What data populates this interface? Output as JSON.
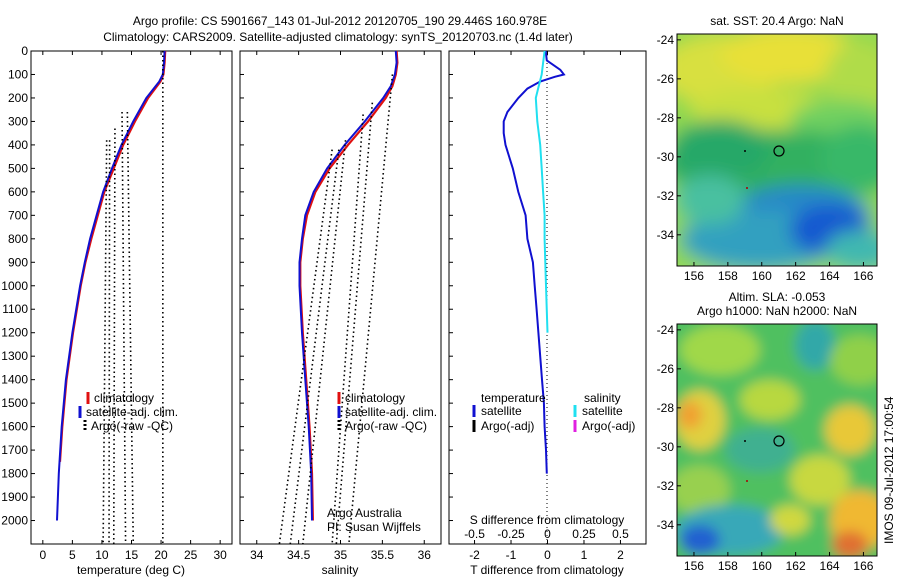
{
  "header": {
    "line1": "Argo profile: CS 5901667_143 01-Jul-2012 20120705_190 29.446S 160.978E",
    "line2": "Climatology: CARS2009. Satellite-adjusted climatology: synTS_20120703.nc (1.4d later)"
  },
  "colors": {
    "climatology": "#e01010",
    "satellite": "#1010d0",
    "argo": "#000000",
    "sal_sat": "#20e0f0",
    "sal_argo": "#e020e0"
  },
  "chart_data": [
    {
      "type": "line",
      "title": "",
      "xlabel": "temperature (deg C)",
      "ylabel": "",
      "xlim": [
        -2,
        32
      ],
      "ylim": [
        0,
        2100
      ],
      "y_reversed": true,
      "xticks": [
        0,
        5,
        10,
        15,
        20,
        25,
        30
      ],
      "yticks": [
        0,
        100,
        200,
        300,
        400,
        500,
        600,
        700,
        800,
        900,
        1000,
        1100,
        1200,
        1300,
        1400,
        1500,
        1600,
        1700,
        1800,
        1900,
        2000
      ],
      "legend": {
        "position": "lower-right",
        "entries": [
          "climatology",
          "satellite-adj. clim.",
          "Argo(-raw -QC)"
        ]
      },
      "series": [
        {
          "name": "climatology",
          "style": "solid",
          "color_key": "climatology",
          "depth": [
            0,
            50,
            100,
            130,
            200,
            300,
            400,
            500,
            600,
            700,
            800,
            900,
            1000,
            1200,
            1400,
            1600,
            1750
          ],
          "values": [
            20.7,
            20.6,
            20.4,
            19.9,
            17.8,
            15.6,
            13.6,
            12.0,
            10.4,
            9.3,
            8.2,
            7.2,
            6.4,
            5.1,
            4.0,
            3.3,
            2.9
          ]
        },
        {
          "name": "satellite-adj. clim.",
          "style": "solid",
          "color_key": "satellite",
          "depth": [
            0,
            50,
            100,
            130,
            200,
            300,
            400,
            500,
            600,
            700,
            800,
            900,
            1000,
            1200,
            1400,
            1600,
            1800,
            2000
          ],
          "values": [
            20.6,
            20.5,
            20.3,
            19.7,
            17.5,
            15.3,
            13.3,
            11.7,
            10.2,
            9.1,
            8.0,
            7.1,
            6.3,
            5.0,
            3.9,
            3.2,
            2.7,
            2.4
          ]
        },
        {
          "name": "Argo(-raw -QC)",
          "style": "dotted",
          "color_key": "argo",
          "columns": [
            {
              "depth": [
                380,
                2100
              ],
              "values": [
                10.8,
                10.2
              ]
            },
            {
              "depth": [
                380,
                2100
              ],
              "values": [
                11.3,
                11.2
              ]
            },
            {
              "depth": [
                330,
                2100
              ],
              "values": [
                12.2,
                12.0
              ]
            },
            {
              "depth": [
                260,
                2100
              ],
              "values": [
                13.4,
                14.0
              ]
            },
            {
              "depth": [
                260,
                2100
              ],
              "values": [
                14.3,
                15.3
              ]
            },
            {
              "depth": [
                0,
                2100
              ],
              "values": [
                20.3,
                20.3
              ]
            }
          ]
        }
      ]
    },
    {
      "type": "line",
      "title": "",
      "xlabel": "salinity",
      "xlim": [
        33.8,
        36.2
      ],
      "ylim": [
        0,
        2100
      ],
      "y_reversed": true,
      "xticks": [
        34,
        34.5,
        35,
        35.5,
        36
      ],
      "xticklabels": [
        "34",
        "34.5",
        "35",
        "35.5",
        "36"
      ],
      "legend": {
        "position": "lower-right",
        "entries": [
          "climatology",
          "satellite-adj. clim.",
          "Argo(-raw -QC)"
        ]
      },
      "annotations": [
        "Argo Australia",
        "PI: Susan Wijffels"
      ],
      "series": [
        {
          "name": "climatology",
          "style": "solid",
          "color_key": "climatology",
          "depth": [
            0,
            50,
            100,
            150,
            200,
            300,
            400,
            500,
            600,
            700,
            800,
            900,
            1000,
            1200,
            1400,
            1600,
            1800,
            2000
          ],
          "values": [
            35.67,
            35.68,
            35.66,
            35.62,
            35.54,
            35.33,
            35.09,
            34.87,
            34.7,
            34.6,
            34.55,
            34.52,
            34.52,
            34.55,
            34.59,
            34.63,
            34.66,
            34.67
          ]
        },
        {
          "name": "satellite-adj. clim.",
          "style": "solid",
          "color_key": "satellite",
          "depth": [
            0,
            50,
            100,
            150,
            200,
            300,
            400,
            500,
            600,
            700,
            800,
            900,
            1000,
            1200,
            1400,
            1600,
            1800,
            2000
          ],
          "values": [
            35.66,
            35.67,
            35.65,
            35.6,
            35.51,
            35.29,
            35.05,
            34.84,
            34.68,
            34.58,
            34.54,
            34.51,
            34.51,
            34.54,
            34.58,
            34.62,
            34.65,
            34.66
          ]
        },
        {
          "name": "Argo(-raw -QC)",
          "style": "dotted",
          "color_key": "argo",
          "columns": [
            {
              "depth": [
                420,
                2100
              ],
              "values": [
                34.9,
                34.27
              ]
            },
            {
              "depth": [
                420,
                2100
              ],
              "values": [
                34.98,
                34.4
              ]
            },
            {
              "depth": [
                380,
                2100
              ],
              "values": [
                35.06,
                34.55
              ]
            },
            {
              "depth": [
                270,
                2100
              ],
              "values": [
                35.27,
                34.9
              ]
            },
            {
              "depth": [
                220,
                2100
              ],
              "values": [
                35.38,
                34.95
              ]
            },
            {
              "depth": [
                100,
                2100
              ],
              "values": [
                35.62,
                35.1
              ]
            }
          ]
        }
      ]
    },
    {
      "type": "line",
      "title": "",
      "xlabel": "T difference from climatology",
      "xlabel2": "S difference from climatology",
      "xlim": [
        -2.7,
        2.7
      ],
      "ylim": [
        0,
        2100
      ],
      "y_reversed": true,
      "xticks": [
        -2,
        -1,
        0,
        1,
        2
      ],
      "xticks_s": [
        -0.5,
        -0.25,
        0,
        0.25,
        0.5
      ],
      "xticklabels_s": [
        "-0.5",
        "-0.25",
        "0",
        "0.25",
        "0.5"
      ],
      "legend": {
        "position": "center",
        "headings": [
          "temperature",
          "salinity"
        ],
        "entries": [
          "satellite",
          "Argo(-adj)",
          "satellite",
          "Argo(-adj)"
        ]
      },
      "series": [
        {
          "name": "satellite",
          "style": "solid",
          "color_key": "satellite",
          "quantity": "temperature",
          "depth": [
            0,
            40,
            80,
            100,
            110,
            130,
            160,
            200,
            260,
            300,
            350,
            400,
            500,
            600,
            700,
            800,
            900,
            1000,
            1100,
            1200,
            1300,
            1400,
            1500,
            1600,
            1700,
            1800
          ],
          "values": [
            -0.05,
            -0.02,
            0.35,
            0.45,
            0.2,
            -0.2,
            -0.55,
            -0.8,
            -1.1,
            -1.2,
            -1.2,
            -1.15,
            -0.95,
            -0.8,
            -0.6,
            -0.55,
            -0.4,
            -0.35,
            -0.3,
            -0.25,
            -0.2,
            -0.15,
            -0.1,
            -0.08,
            -0.04,
            -0.02
          ]
        },
        {
          "name": "satellite",
          "style": "solid",
          "color_key": "sal_sat",
          "quantity": "salinity",
          "depth": [
            0,
            50,
            100,
            150,
            200,
            300,
            400,
            500,
            600,
            700,
            800,
            1000,
            1200
          ],
          "values": [
            -0.02,
            -0.03,
            -0.04,
            -0.06,
            -0.08,
            -0.07,
            -0.05,
            -0.04,
            -0.03,
            -0.02,
            -0.02,
            -0.01,
            0.0
          ]
        }
      ]
    }
  ],
  "maps": [
    {
      "title": "sat. SST: 20.4  Argo: NaN",
      "xticks": [
        "156",
        "158",
        "160",
        "162",
        "164",
        "166"
      ],
      "yticks": [
        "-24",
        "-26",
        "-28",
        "-30",
        "-32",
        "-34"
      ]
    },
    {
      "title1": "Altim. SLA: -0.053",
      "title2": "Argo h1000: NaN h2000: NaN",
      "xticks": [
        "156",
        "158",
        "160",
        "162",
        "164",
        "166"
      ],
      "yticks": [
        "-24",
        "-26",
        "-28",
        "-30",
        "-32",
        "-34"
      ]
    }
  ],
  "side_label": "IMOS 09-Jul-2012 17:00:54"
}
